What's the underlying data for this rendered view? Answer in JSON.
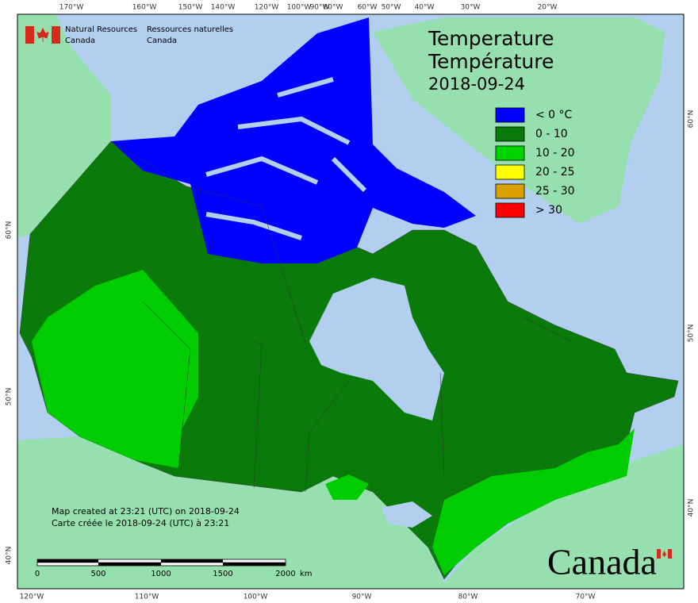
{
  "header": {
    "org_en": [
      "Natural Resources",
      "Canada"
    ],
    "org_fr": [
      "Ressources naturelles",
      "Canada"
    ]
  },
  "title": [
    "Temperature",
    "Température",
    "2018-09-24"
  ],
  "legend": [
    {
      "label": "< 0 °C",
      "color": "#0000ff"
    },
    {
      "label": "0 - 10",
      "color": "#0a7a0a"
    },
    {
      "label": "10 - 20",
      "color": "#00d400"
    },
    {
      "label": "20 - 25",
      "color": "#ffff00"
    },
    {
      "label": "25 - 30",
      "color": "#d9a000"
    },
    {
      "label": "> 30",
      "color": "#ff0000"
    }
  ],
  "notes": [
    "Map created at 23:21 (UTC) on 2018-09-24",
    "Carte créée le 2018-09-24 (UTC) à 23:21"
  ],
  "scale_bar": {
    "labels": [
      "0",
      "500",
      "1000",
      "1500",
      "2000"
    ],
    "unit": "km"
  },
  "graticule": {
    "top": [
      "170°W",
      "160°W",
      "150°W",
      "140°W",
      "120°W",
      "100°W",
      "90°W",
      "80°W",
      "60°W",
      "50°W",
      "40°W",
      "30°W",
      "20°W"
    ],
    "bottom": [
      "120°W",
      "110°W",
      "100°W",
      "90°W",
      "80°W",
      "70°W"
    ],
    "left": [
      "60°N",
      "50°N",
      "40°N"
    ],
    "right": [
      "60°N",
      "50°N",
      "40°N"
    ]
  },
  "wordmark": "Canada"
}
